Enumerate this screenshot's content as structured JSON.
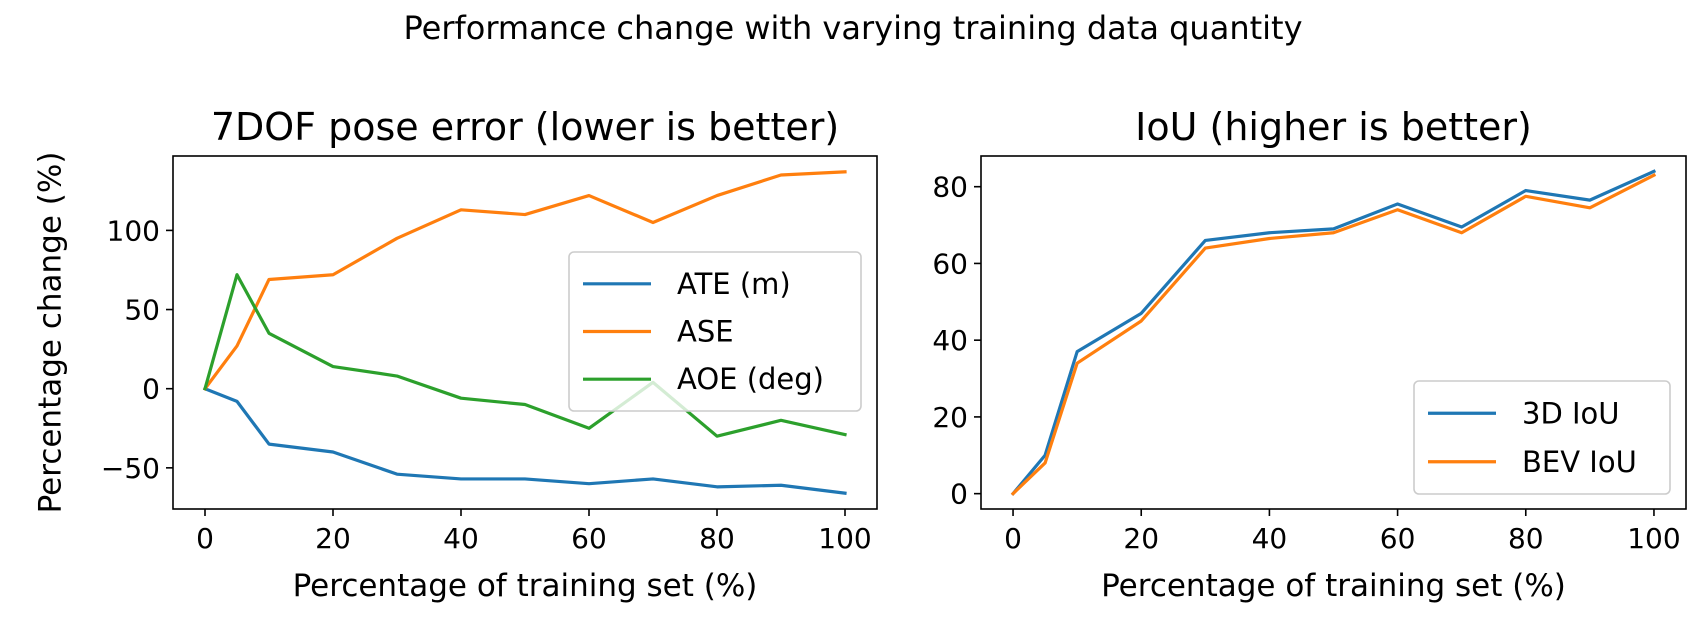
{
  "suptitle": "Performance change with varying training data quantity",
  "chart_data": [
    {
      "type": "line",
      "title": "7DOF pose error (lower is better)",
      "xlabel": "Percentage of training set (%)",
      "ylabel": "Percentage change (%)",
      "xlim": [
        -5,
        105
      ],
      "ylim": [
        -76,
        147
      ],
      "xticks": [
        0,
        20,
        40,
        60,
        80,
        100
      ],
      "yticks": [
        -50,
        0,
        50,
        100
      ],
      "ytick_labels": [
        "−50",
        "0",
        "50",
        "100"
      ],
      "legend_position": "center-right",
      "x": [
        0,
        5,
        10,
        20,
        30,
        40,
        50,
        60,
        70,
        80,
        90,
        100
      ],
      "series": [
        {
          "name": "ATE (m)",
          "color": "#1f77b4",
          "values": [
            0,
            -8,
            -35,
            -40,
            -54,
            -57,
            -57,
            -60,
            -57,
            -62,
            -61,
            -66
          ]
        },
        {
          "name": "ASE",
          "color": "#ff7f0e",
          "values": [
            0,
            27,
            69,
            72,
            95,
            113,
            110,
            122,
            105,
            122,
            135,
            137
          ]
        },
        {
          "name": "AOE (deg)",
          "color": "#2ca02c",
          "values": [
            0,
            72,
            35,
            14,
            8,
            -6,
            -10,
            -25,
            4,
            -30,
            -20,
            -29
          ]
        }
      ]
    },
    {
      "type": "line",
      "title": "IoU (higher is better)",
      "xlabel": "Percentage of training set (%)",
      "ylabel": "",
      "xlim": [
        -5,
        105
      ],
      "ylim": [
        -4,
        88
      ],
      "xticks": [
        0,
        20,
        40,
        60,
        80,
        100
      ],
      "yticks": [
        0,
        20,
        40,
        60,
        80
      ],
      "ytick_labels": [
        "0",
        "20",
        "40",
        "60",
        "80"
      ],
      "legend_position": "lower-right",
      "x": [
        0,
        5,
        10,
        20,
        30,
        40,
        50,
        60,
        70,
        80,
        90,
        100
      ],
      "series": [
        {
          "name": "3D IoU",
          "color": "#1f77b4",
          "values": [
            0,
            10,
            37,
            47,
            66,
            68,
            69,
            75.5,
            69.5,
            79,
            76.5,
            84
          ]
        },
        {
          "name": "BEV IoU",
          "color": "#ff7f0e",
          "values": [
            0,
            8,
            34,
            45,
            64,
            66.5,
            68,
            74,
            68,
            77.5,
            74.5,
            83
          ]
        }
      ]
    }
  ]
}
